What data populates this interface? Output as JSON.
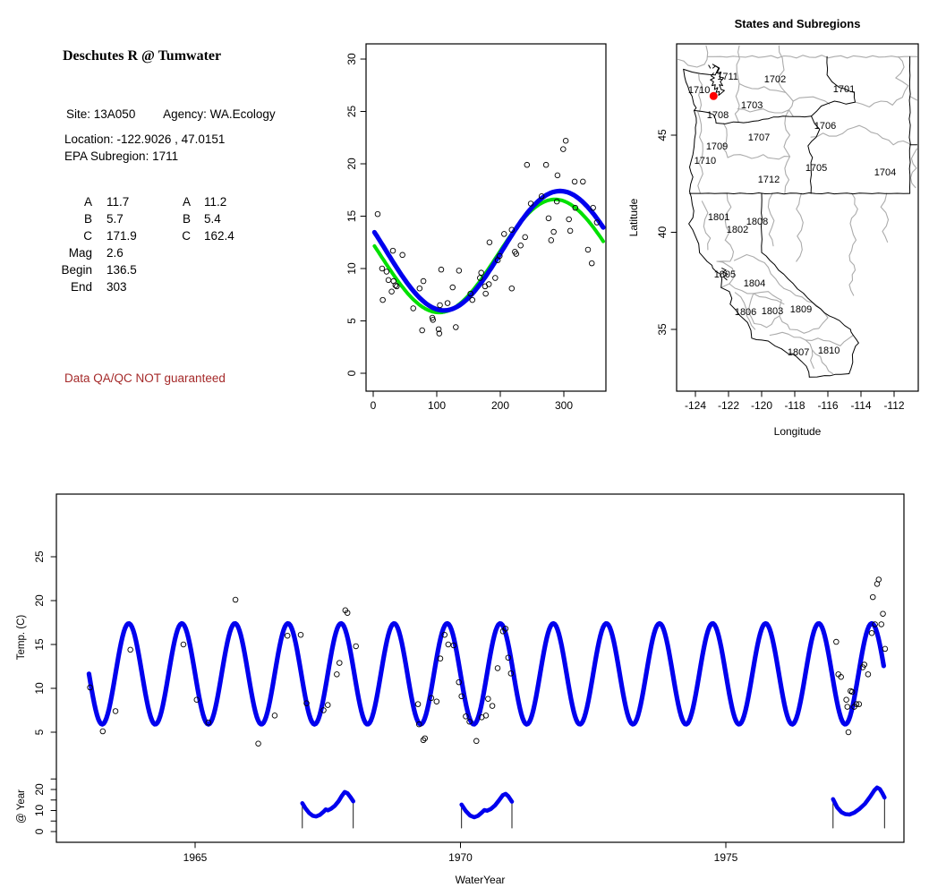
{
  "colors": {
    "fit_blue": "#0000ee",
    "fit_green": "#00e000",
    "site_marker_red": "#ff0000",
    "warning_red": "#a52a2a",
    "subregion_gray": "#ababab",
    "axis_black": "#000000"
  },
  "info_panel": {
    "title": "Deschutes R @ Tumwater",
    "site_label": "Site:",
    "site_value": "13A050",
    "agency_label": "Agency:",
    "agency_value": "WA.Ecology",
    "location_line": "Location: -122.9026 , 47.0151",
    "subregion_line": "EPA Subregion: 1711",
    "parameters": {
      "col1": [
        [
          "A",
          "11.7"
        ],
        [
          "B",
          "5.7"
        ],
        [
          "C",
          "171.9"
        ],
        [
          "Mag",
          "2.6"
        ],
        [
          "Begin",
          "136.5"
        ],
        [
          "End",
          "303"
        ]
      ],
      "col2": [
        [
          "A",
          "11.2"
        ],
        [
          "B",
          "5.4"
        ],
        [
          "C",
          "162.4"
        ]
      ]
    },
    "warning": "Data QA/QC NOT guaranteed"
  },
  "chart_data": [
    {
      "id": "seasonal_fit_chart",
      "type": "scatter",
      "title": "",
      "xlabel": "",
      "ylabel": "",
      "x_ticks": [
        0,
        100,
        200,
        300
      ],
      "y_ticks": [
        0,
        5,
        10,
        15,
        20,
        25,
        30
      ],
      "xlim": [
        -12,
        377
      ],
      "ylim": [
        -2,
        31.5
      ],
      "grid": false,
      "points": [
        [
          7,
          15.2
        ],
        [
          14,
          10.0
        ],
        [
          15,
          7.0
        ],
        [
          21,
          9.7
        ],
        [
          24,
          8.9
        ],
        [
          29,
          7.8
        ],
        [
          31,
          11.7
        ],
        [
          32,
          8.8
        ],
        [
          35,
          8.4
        ],
        [
          37,
          8.3
        ],
        [
          46,
          11.3
        ],
        [
          63,
          6.2
        ],
        [
          73,
          8.1
        ],
        [
          77,
          4.1
        ],
        [
          79,
          8.8
        ],
        [
          93,
          5.3
        ],
        [
          94,
          5.1
        ],
        [
          103,
          4.2
        ],
        [
          104,
          3.8
        ],
        [
          105,
          6.5
        ],
        [
          107,
          9.9
        ],
        [
          117,
          6.7
        ],
        [
          125,
          8.2
        ],
        [
          130,
          4.4
        ],
        [
          135,
          9.8
        ],
        [
          153,
          7.6
        ],
        [
          156,
          7.0
        ],
        [
          168,
          9.1
        ],
        [
          170,
          9.6
        ],
        [
          176,
          8.3
        ],
        [
          177,
          7.6
        ],
        [
          182,
          8.5
        ],
        [
          183,
          12.5
        ],
        [
          192,
          9.1
        ],
        [
          196,
          10.8
        ],
        [
          199,
          11.2
        ],
        [
          206,
          13.3
        ],
        [
          218,
          13.7
        ],
        [
          218,
          8.1
        ],
        [
          223,
          11.6
        ],
        [
          225,
          11.4
        ],
        [
          232,
          12.2
        ],
        [
          239,
          13.0
        ],
        [
          242,
          19.9
        ],
        [
          248,
          16.2
        ],
        [
          265,
          16.9
        ],
        [
          272,
          19.9
        ],
        [
          276,
          14.8
        ],
        [
          280,
          12.7
        ],
        [
          284,
          13.5
        ],
        [
          289,
          16.4
        ],
        [
          290,
          18.9
        ],
        [
          299,
          21.4
        ],
        [
          303,
          22.2
        ],
        [
          308,
          14.7
        ],
        [
          310,
          13.6
        ],
        [
          317,
          18.3
        ],
        [
          318,
          15.8
        ],
        [
          330,
          18.3
        ],
        [
          338,
          11.8
        ],
        [
          344,
          10.5
        ],
        [
          346,
          15.8
        ],
        [
          352,
          14.4
        ]
      ],
      "fits": [
        {
          "name": "sine-fit-green",
          "color": "#00e000",
          "mean": 11.2,
          "amplitude": 5.4,
          "peak_day": 286
        },
        {
          "name": "sine-fit-blue",
          "color": "#0000ee",
          "mean": 11.7,
          "amplitude": 5.7,
          "peak_day": 294
        }
      ]
    },
    {
      "id": "subregion_map",
      "type": "map",
      "title": "States and Subregions",
      "xlabel": "Longitude",
      "ylabel": "Latitude",
      "x_ticks": [
        -124,
        -122,
        -120,
        -118,
        -116,
        -114,
        -112
      ],
      "y_ticks": [
        35,
        40,
        45
      ],
      "xlim": [
        -125.1,
        -110.6
      ],
      "ylim": [
        31.8,
        49.7
      ],
      "site_marker": {
        "lon": -122.9026,
        "lat": 47.0151,
        "color": "#ff0000"
      },
      "region_labels": [
        {
          "text": "1702",
          "lon": -119.19,
          "lat": 47.9
        },
        {
          "text": "1701",
          "lon": -115.03,
          "lat": 47.4
        },
        {
          "text": "1710",
          "lon": -123.78,
          "lat": 47.35
        },
        {
          "text": "1711",
          "lon": -122.05,
          "lat": 48.04
        },
        {
          "text": "1703",
          "lon": -120.59,
          "lat": 46.57
        },
        {
          "text": "1708",
          "lon": -122.65,
          "lat": 46.06
        },
        {
          "text": "1706",
          "lon": -116.16,
          "lat": 45.51
        },
        {
          "text": "1707",
          "lon": -120.16,
          "lat": 44.91
        },
        {
          "text": "1709",
          "lon": -122.7,
          "lat": 44.45
        },
        {
          "text": "1710",
          "lon": -123.41,
          "lat": 43.71
        },
        {
          "text": "1705",
          "lon": -116.7,
          "lat": 43.34
        },
        {
          "text": "1704",
          "lon": -112.54,
          "lat": 43.11
        },
        {
          "text": "1712",
          "lon": -119.57,
          "lat": 42.74
        },
        {
          "text": "1801",
          "lon": -122.59,
          "lat": 40.81
        },
        {
          "text": "1808",
          "lon": -120.27,
          "lat": 40.58
        },
        {
          "text": "1802",
          "lon": -121.46,
          "lat": 40.16
        },
        {
          "text": "1805",
          "lon": -122.22,
          "lat": 37.85
        },
        {
          "text": "1804",
          "lon": -120.43,
          "lat": 37.4
        },
        {
          "text": "1806",
          "lon": -120.97,
          "lat": 35.92
        },
        {
          "text": "1803",
          "lon": -119.35,
          "lat": 35.97
        },
        {
          "text": "1809",
          "lon": -117.62,
          "lat": 36.06
        },
        {
          "text": "1807",
          "lon": -117.78,
          "lat": 33.85
        },
        {
          "text": "1810",
          "lon": -115.94,
          "lat": 33.94
        }
      ]
    },
    {
      "id": "timeseries_chart",
      "type": "line",
      "xlabel": "WaterYear",
      "ylabel": "Temp. (C)",
      "ylabel_secondary": "@ Year",
      "x_ticks": [
        1965,
        1970,
        1975
      ],
      "y_ticks": [
        5,
        10,
        15,
        20,
        25
      ],
      "y2_ticks": [
        0,
        10,
        20
      ],
      "xlim": [
        1962.4,
        1978.35
      ],
      "seasonal_fit": {
        "color": "#0000ee",
        "mean": 11.65,
        "amplitude": 5.75,
        "trough_frac": 0.25,
        "peak_frac": 0.75,
        "start": 1963.0,
        "end": 1977.98
      },
      "points": [
        [
          1963.02,
          10.1
        ],
        [
          1963.26,
          5.1
        ],
        [
          1963.5,
          7.4
        ],
        [
          1963.78,
          14.4
        ],
        [
          1964.78,
          15.0
        ],
        [
          1965.03,
          8.7
        ],
        [
          1965.25,
          6.1
        ],
        [
          1965.76,
          20.1
        ],
        [
          1966.19,
          3.7
        ],
        [
          1966.5,
          6.9
        ],
        [
          1966.74,
          16.0
        ],
        [
          1966.99,
          16.1
        ],
        [
          1967.1,
          8.3
        ],
        [
          1967.42,
          7.5
        ],
        [
          1967.5,
          8.1
        ],
        [
          1967.67,
          11.6
        ],
        [
          1967.72,
          12.9
        ],
        [
          1967.83,
          18.9
        ],
        [
          1967.87,
          18.6
        ],
        [
          1968.03,
          14.8
        ],
        [
          1969.2,
          8.2
        ],
        [
          1969.22,
          5.9
        ],
        [
          1969.3,
          4.1
        ],
        [
          1969.33,
          4.3
        ],
        [
          1969.45,
          8.9
        ],
        [
          1969.55,
          8.5
        ],
        [
          1969.62,
          13.4
        ],
        [
          1969.7,
          16.1
        ],
        [
          1969.77,
          15.0
        ],
        [
          1969.87,
          14.9
        ],
        [
          1969.97,
          10.7
        ],
        [
          1970.02,
          9.1
        ],
        [
          1970.1,
          6.8
        ],
        [
          1970.17,
          6.2
        ],
        [
          1970.3,
          4.0
        ],
        [
          1970.4,
          6.7
        ],
        [
          1970.48,
          6.9
        ],
        [
          1970.52,
          8.8
        ],
        [
          1970.6,
          8.0
        ],
        [
          1970.7,
          12.3
        ],
        [
          1970.8,
          16.5
        ],
        [
          1970.85,
          16.8
        ],
        [
          1970.9,
          13.5
        ],
        [
          1970.95,
          11.7
        ],
        [
          1977.08,
          15.3
        ],
        [
          1977.12,
          11.6
        ],
        [
          1977.17,
          11.3
        ],
        [
          1977.27,
          8.7
        ],
        [
          1977.29,
          7.9
        ],
        [
          1977.31,
          5.0
        ],
        [
          1977.35,
          9.7
        ],
        [
          1977.38,
          9.6
        ],
        [
          1977.42,
          7.9
        ],
        [
          1977.46,
          8.2
        ],
        [
          1977.51,
          8.2
        ],
        [
          1977.58,
          12.4
        ],
        [
          1977.61,
          12.7
        ],
        [
          1977.68,
          11.6
        ],
        [
          1977.75,
          16.3
        ],
        [
          1977.77,
          20.4
        ],
        [
          1977.81,
          17.3
        ],
        [
          1977.85,
          21.9
        ],
        [
          1977.88,
          22.4
        ],
        [
          1977.93,
          17.3
        ],
        [
          1977.96,
          18.5
        ],
        [
          1978.0,
          14.5
        ]
      ],
      "year_insets": [
        {
          "start": 1967,
          "end": 1968,
          "profile": [
            [
              0.02,
              13.5
            ],
            [
              0.08,
              11.0
            ],
            [
              0.15,
              8.8
            ],
            [
              0.22,
              7.5
            ],
            [
              0.28,
              7.2
            ],
            [
              0.35,
              7.9
            ],
            [
              0.42,
              9.4
            ],
            [
              0.46,
              10.5
            ],
            [
              0.5,
              10.1
            ],
            [
              0.56,
              10.8
            ],
            [
              0.63,
              12.2
            ],
            [
              0.7,
              14.3
            ],
            [
              0.77,
              17.2
            ],
            [
              0.82,
              18.8
            ],
            [
              0.87,
              18.2
            ],
            [
              0.93,
              16.3
            ],
            [
              0.98,
              14.4
            ]
          ]
        },
        {
          "start": 1970,
          "end": 1971,
          "profile": [
            [
              0.02,
              12.8
            ],
            [
              0.1,
              9.8
            ],
            [
              0.18,
              7.6
            ],
            [
              0.26,
              6.8
            ],
            [
              0.33,
              7.5
            ],
            [
              0.4,
              9.0
            ],
            [
              0.45,
              10.2
            ],
            [
              0.5,
              9.9
            ],
            [
              0.57,
              10.7
            ],
            [
              0.65,
              12.4
            ],
            [
              0.73,
              15.0
            ],
            [
              0.8,
              17.3
            ],
            [
              0.85,
              17.9
            ],
            [
              0.9,
              16.8
            ],
            [
              0.97,
              14.2
            ]
          ]
        },
        {
          "start": 1977,
          "end": 1978,
          "profile": [
            [
              0.02,
              15.4
            ],
            [
              0.1,
              11.4
            ],
            [
              0.18,
              9.2
            ],
            [
              0.25,
              8.3
            ],
            [
              0.33,
              8.1
            ],
            [
              0.42,
              9.0
            ],
            [
              0.52,
              10.8
            ],
            [
              0.62,
              13.2
            ],
            [
              0.72,
              16.6
            ],
            [
              0.8,
              19.6
            ],
            [
              0.85,
              20.9
            ],
            [
              0.9,
              20.2
            ],
            [
              0.95,
              18.2
            ],
            [
              0.99,
              16.2
            ]
          ]
        }
      ]
    }
  ]
}
